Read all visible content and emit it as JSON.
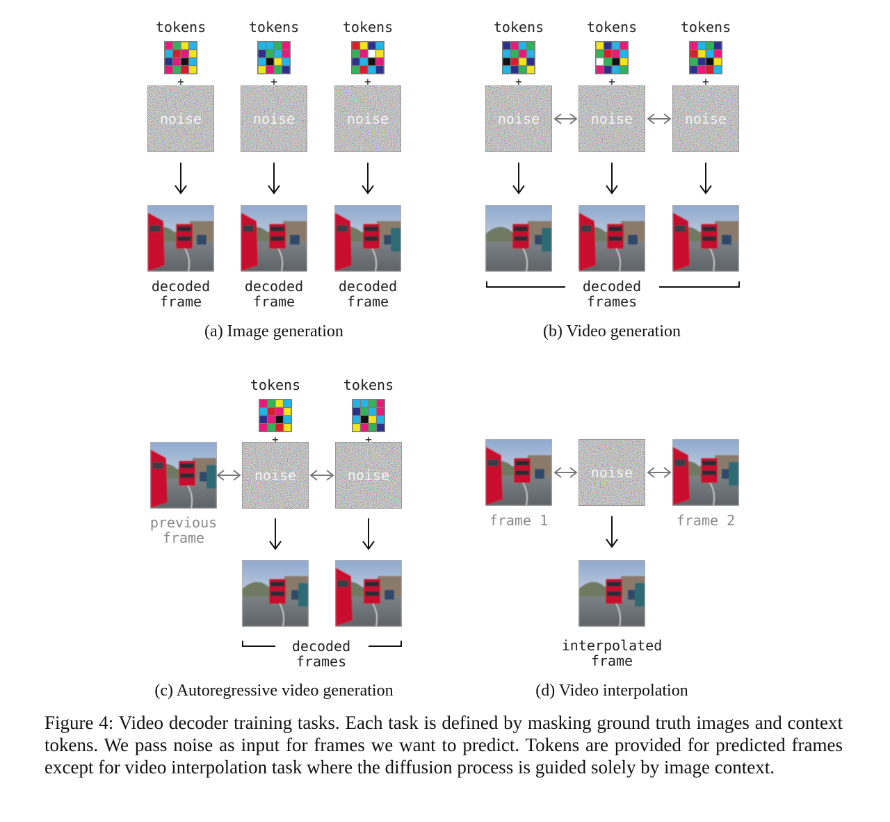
{
  "figure": {
    "labels": {
      "tokens": "tokens",
      "plus": "+",
      "noise": "noise",
      "decoded": "decoded",
      "frame_word": "frame",
      "frames_word": "frames",
      "previous": "previous",
      "frame_1": "frame 1",
      "frame_2": "frame 2",
      "interpolated": "interpolated",
      "bidir_arrow": "↔",
      "down_arrow": "↓"
    },
    "panels": {
      "a": {
        "title": "(a) Image generation"
      },
      "b": {
        "title": "(b) Video generation"
      },
      "c": {
        "title": "(c) Autoregressive video generation"
      },
      "d": {
        "title": "(d) Video interpolation"
      }
    },
    "colors": {
      "token_palette": [
        "#e8197a",
        "#1fb6e9",
        "#2fb457",
        "#f2e51a",
        "#2c2f8c",
        "#111111",
        "#ffffff",
        "#d91d2a"
      ],
      "muted_label": "#888888",
      "bus_red": "#c8102e",
      "sky": "#a9bcd6",
      "road": "#6f7478"
    }
  },
  "caption": {
    "label": "Figure 4:",
    "text": "Video decoder training tasks. Each task is defined by masking ground truth images and context tokens. We pass noise as input for frames we want to predict. Tokens are provided for predicted frames except for video interpolation task where the diffusion process is guided solely by image context."
  }
}
